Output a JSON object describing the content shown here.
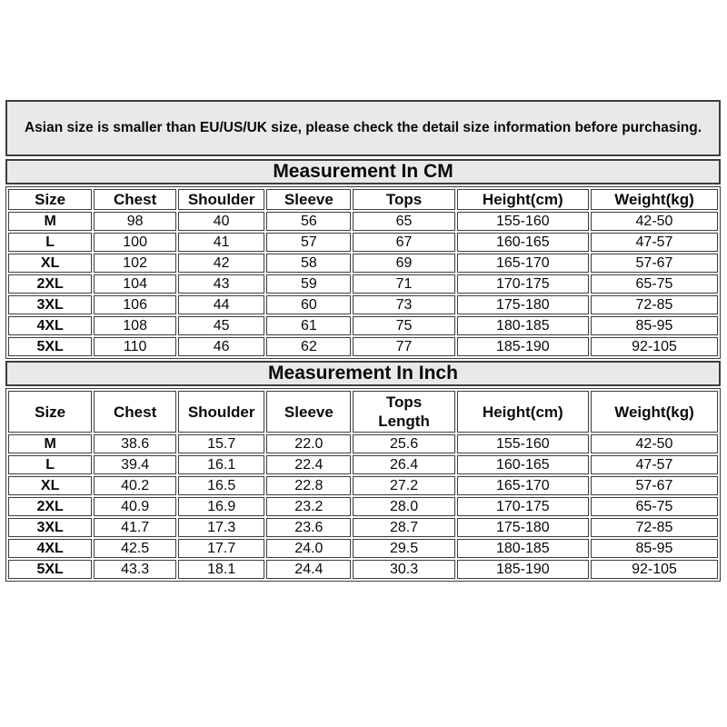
{
  "notice": "Asian size is smaller than EU/US/UK size, please check the detail size information before purchasing.",
  "cm_section": {
    "title": "Measurement In CM",
    "columns": [
      "Size",
      "Chest",
      "Shoulder",
      "Sleeve",
      "Tops",
      "Height(cm)",
      "Weight(kg)"
    ],
    "rows": [
      [
        "M",
        "98",
        "40",
        "56",
        "65",
        "155-160",
        "42-50"
      ],
      [
        "L",
        "100",
        "41",
        "57",
        "67",
        "160-165",
        "47-57"
      ],
      [
        "XL",
        "102",
        "42",
        "58",
        "69",
        "165-170",
        "57-67"
      ],
      [
        "2XL",
        "104",
        "43",
        "59",
        "71",
        "170-175",
        "65-75"
      ],
      [
        "3XL",
        "106",
        "44",
        "60",
        "73",
        "175-180",
        "72-85"
      ],
      [
        "4XL",
        "108",
        "45",
        "61",
        "75",
        "180-185",
        "85-95"
      ],
      [
        "5XL",
        "110",
        "46",
        "62",
        "77",
        "185-190",
        "92-105"
      ]
    ]
  },
  "inch_section": {
    "title": "Measurement In Inch",
    "columns": [
      "Size",
      "Chest",
      "Shoulder",
      "Sleeve",
      "Tops\nLength",
      "Height(cm)",
      "Weight(kg)"
    ],
    "rows": [
      [
        "M",
        "38.6",
        "15.7",
        "22.0",
        "25.6",
        "155-160",
        "42-50"
      ],
      [
        "L",
        "39.4",
        "16.1",
        "22.4",
        "26.4",
        "160-165",
        "47-57"
      ],
      [
        "XL",
        "40.2",
        "16.5",
        "22.8",
        "27.2",
        "165-170",
        "57-67"
      ],
      [
        "2XL",
        "40.9",
        "16.9",
        "23.2",
        "28.0",
        "170-175",
        "65-75"
      ],
      [
        "3XL",
        "41.7",
        "17.3",
        "23.6",
        "28.7",
        "175-180",
        "72-85"
      ],
      [
        "4XL",
        "42.5",
        "17.7",
        "24.0",
        "29.5",
        "180-185",
        "85-95"
      ],
      [
        "5XL",
        "43.3",
        "18.1",
        "24.4",
        "30.3",
        "185-190",
        "92-105"
      ]
    ]
  },
  "colors": {
    "banner_bg": "#e9e9e9",
    "border": "#3d3d3d",
    "text": "#0a0a0a",
    "page_bg": "#ffffff"
  }
}
